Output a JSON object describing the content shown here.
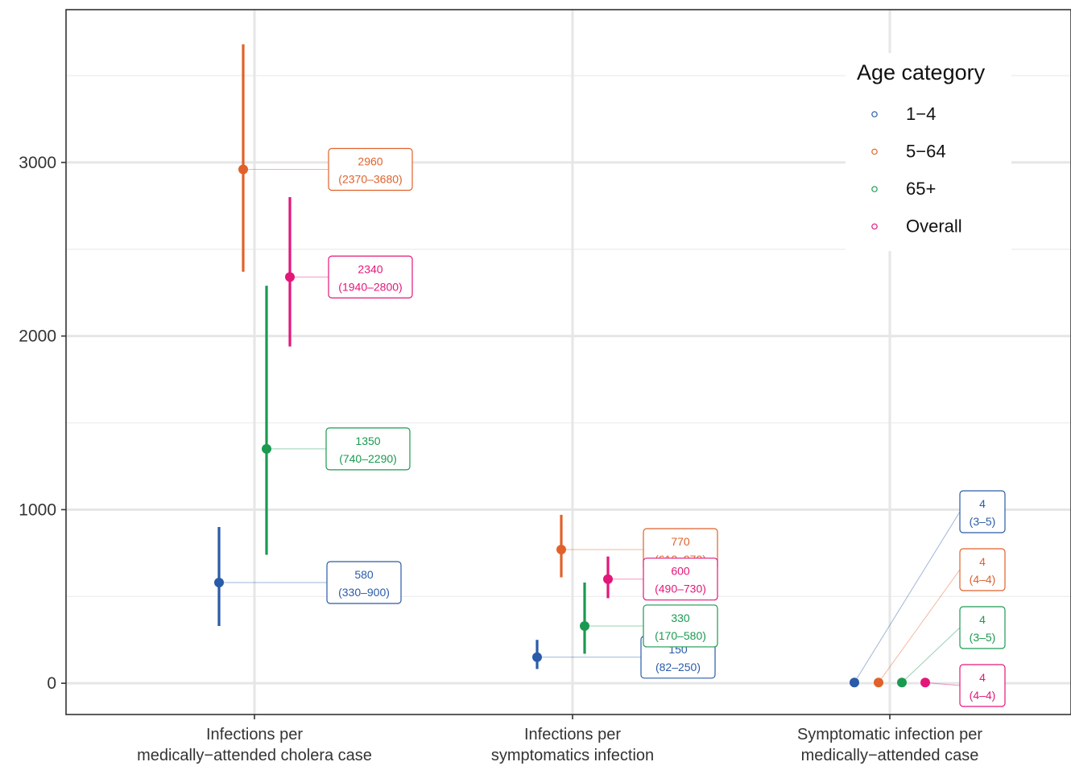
{
  "chart_data": {
    "type": "scatter",
    "title": "",
    "xlabel": "",
    "ylabel": "",
    "ylim": [
      -180,
      3880
    ],
    "yticks": [
      0,
      1000,
      2000,
      3000
    ],
    "ytick_labels": [
      "0",
      "1000",
      "2000",
      "3000"
    ],
    "grid": true,
    "legend_position": "top-right",
    "categories": [
      {
        "line1": "Infections per",
        "line2": "medically−attended cholera case"
      },
      {
        "line1": "Infections per",
        "line2": "symptomatics infection"
      },
      {
        "line1": "Symptomatic infection per",
        "line2": "medically−attended case"
      }
    ],
    "legend": {
      "title": "Age category",
      "entries": [
        "1−4",
        "5−64",
        "65+",
        "Overall"
      ]
    },
    "series": [
      {
        "name": "1−4",
        "color": "#2a5ba8",
        "points": [
          {
            "y": 580,
            "low": 330,
            "high": 900,
            "label": "580",
            "ci": "(330–900)"
          },
          {
            "y": 150,
            "low": 82,
            "high": 250,
            "label": "150",
            "ci": "(82–250)"
          },
          {
            "y": 4,
            "low": 3,
            "high": 5,
            "label": "4",
            "ci": "(3–5)"
          }
        ]
      },
      {
        "name": "5−64",
        "color": "#e0622a",
        "points": [
          {
            "y": 2960,
            "low": 2370,
            "high": 3680,
            "label": "2960",
            "ci": "(2370–3680)"
          },
          {
            "y": 770,
            "low": 610,
            "high": 970,
            "label": "770",
            "ci": "(610–970)"
          },
          {
            "y": 4,
            "low": 4,
            "high": 4,
            "label": "4",
            "ci": "(4–4)"
          }
        ]
      },
      {
        "name": "65+",
        "color": "#1a9a50",
        "points": [
          {
            "y": 1350,
            "low": 740,
            "high": 2290,
            "label": "1350",
            "ci": "(740–2290)"
          },
          {
            "y": 330,
            "low": 170,
            "high": 580,
            "label": "330",
            "ci": "(170–580)"
          },
          {
            "y": 4,
            "low": 3,
            "high": 5,
            "label": "4",
            "ci": "(3–5)"
          }
        ]
      },
      {
        "name": "Overall",
        "color": "#e3177a",
        "points": [
          {
            "y": 2340,
            "low": 1940,
            "high": 2800,
            "label": "2340",
            "ci": "(1940–2800)"
          },
          {
            "y": 600,
            "low": 490,
            "high": 730,
            "label": "600",
            "ci": "(490–730)"
          },
          {
            "y": 4,
            "low": 4,
            "high": 4,
            "label": "4",
            "ci": "(4–4)"
          }
        ]
      }
    ]
  }
}
